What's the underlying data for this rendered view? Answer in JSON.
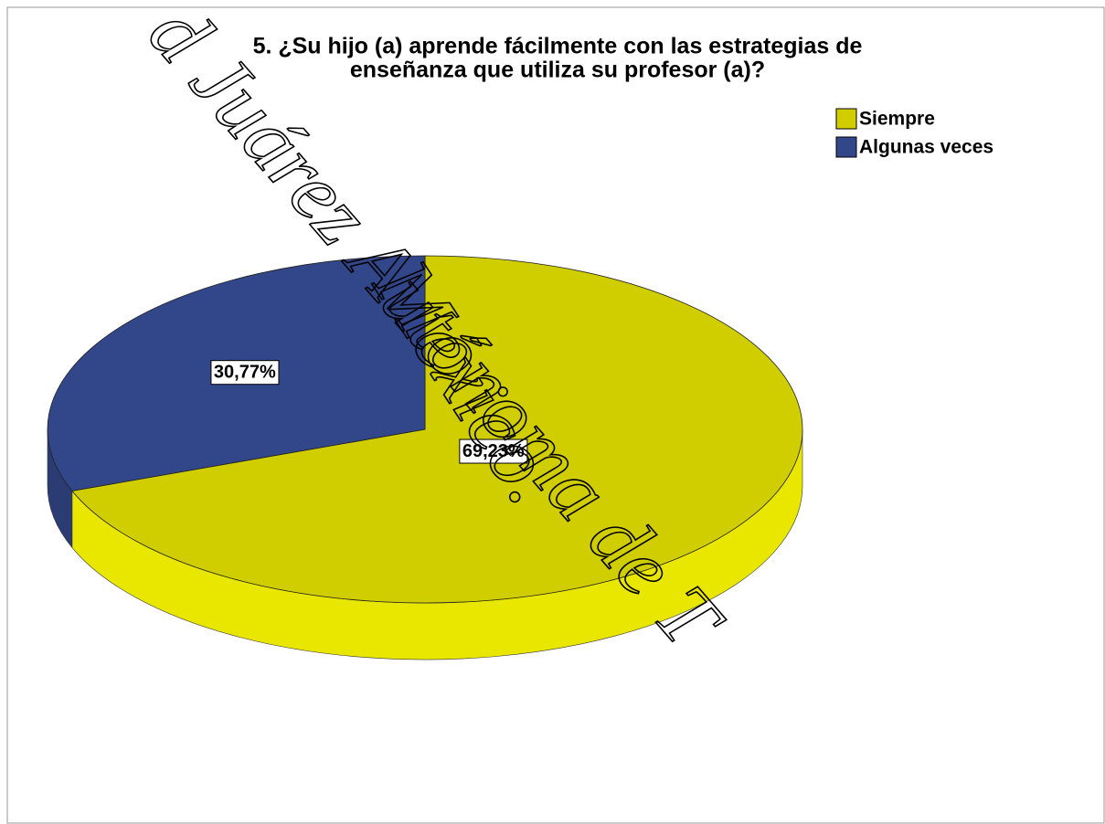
{
  "chart_data": {
    "type": "pie",
    "title": [
      "5. ¿Su hijo (a) aprende fácilmente con las estrategias de",
      "enseñanza que utiliza su profesor (a)?"
    ],
    "categories": [
      "Siempre",
      "Algunas veces"
    ],
    "values": [
      69.23,
      30.77
    ],
    "value_labels": [
      "69,23%",
      "30,77%"
    ],
    "colors": [
      "#d0cd00",
      "#32468a"
    ],
    "legend": "top-right"
  },
  "watermark": [
    "d Juárez Autónoma de T",
    "México."
  ]
}
